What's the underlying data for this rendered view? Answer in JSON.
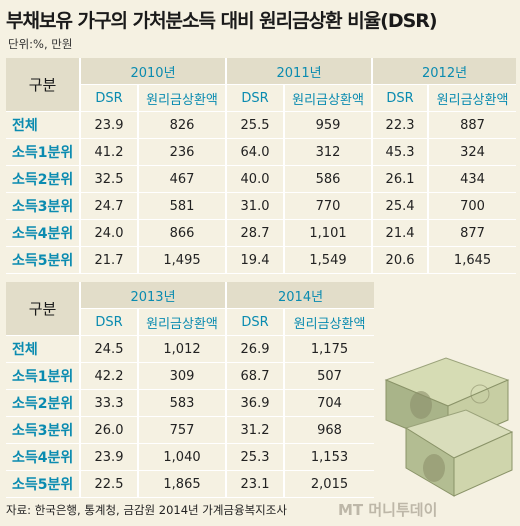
{
  "title": "부채보유 가구의 가처분소득 대비 원리금상환 비율(DSR)",
  "unit": "단위:%, 만원",
  "col_label": "구분",
  "sub_dsr": "DSR",
  "sub_amt": "원리금상환액",
  "table1": {
    "years": [
      "2010년",
      "2011년",
      "2012년"
    ],
    "rows": [
      {
        "label": "전체",
        "vals": [
          "23.9",
          "826",
          "25.5",
          "959",
          "22.3",
          "887"
        ]
      },
      {
        "label": "소득1분위",
        "vals": [
          "41.2",
          "236",
          "64.0",
          "312",
          "45.3",
          "324"
        ]
      },
      {
        "label": "소득2분위",
        "vals": [
          "32.5",
          "467",
          "40.0",
          "586",
          "26.1",
          "434"
        ]
      },
      {
        "label": "소득3분위",
        "vals": [
          "24.7",
          "581",
          "31.0",
          "770",
          "25.4",
          "700"
        ]
      },
      {
        "label": "소득4분위",
        "vals": [
          "24.0",
          "866",
          "28.7",
          "1,101",
          "21.4",
          "877"
        ]
      },
      {
        "label": "소득5분위",
        "vals": [
          "21.7",
          "1,495",
          "19.4",
          "1,549",
          "20.6",
          "1,645"
        ]
      }
    ]
  },
  "table2": {
    "years": [
      "2013년",
      "2014년"
    ],
    "rows": [
      {
        "label": "전체",
        "vals": [
          "24.5",
          "1,012",
          "26.9",
          "1,175"
        ]
      },
      {
        "label": "소득1분위",
        "vals": [
          "42.2",
          "309",
          "68.7",
          "507"
        ]
      },
      {
        "label": "소득2분위",
        "vals": [
          "33.3",
          "583",
          "36.9",
          "704"
        ]
      },
      {
        "label": "소득3분위",
        "vals": [
          "26.0",
          "757",
          "31.2",
          "968"
        ]
      },
      {
        "label": "소득4분위",
        "vals": [
          "23.9",
          "1,040",
          "25.3",
          "1,153"
        ]
      },
      {
        "label": "소득5분위",
        "vals": [
          "22.5",
          "1,865",
          "23.1",
          "2,015"
        ]
      }
    ]
  },
  "source": "자료: 한국은행, 통계청, 금감원 2014년 가계금융복지조사",
  "logo": "MT 머니투데이",
  "colors": {
    "accent": "#0a8bb0",
    "header_bg": "#e2ddc9",
    "page_bg": "#f5f1e2"
  }
}
